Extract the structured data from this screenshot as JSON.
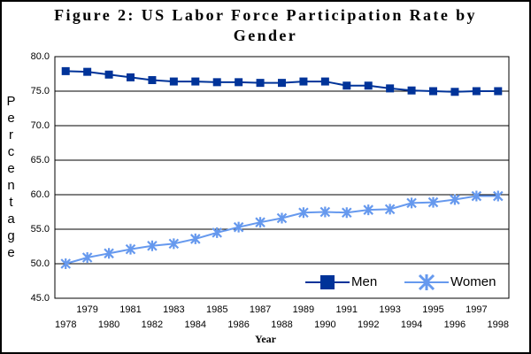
{
  "chart_data": {
    "type": "line",
    "title": "Figure 2: US Labor Force Participation Rate by Gender",
    "x_label": "Year",
    "y_label": "Percentage",
    "categories": [
      "1978",
      "1979",
      "1980",
      "1981",
      "1982",
      "1983",
      "1984",
      "1985",
      "1986",
      "1987",
      "1988",
      "1989",
      "1990",
      "1991",
      "1992",
      "1993",
      "1994",
      "1995",
      "1996",
      "1997",
      "1998"
    ],
    "series": [
      {
        "name": "Men",
        "color": "#003399",
        "marker": "square",
        "values": [
          77.9,
          77.8,
          77.4,
          77.0,
          76.6,
          76.4,
          76.4,
          76.3,
          76.3,
          76.2,
          76.2,
          76.4,
          76.4,
          75.8,
          75.8,
          75.4,
          75.1,
          75.0,
          74.9,
          75.0,
          75.0
        ]
      },
      {
        "name": "Women",
        "color": "#6699ee",
        "marker": "star",
        "values": [
          50.0,
          50.9,
          51.5,
          52.1,
          52.6,
          52.9,
          53.6,
          54.5,
          55.3,
          56.0,
          56.6,
          57.4,
          57.5,
          57.4,
          57.8,
          57.9,
          58.8,
          58.9,
          59.3,
          59.8,
          59.8
        ]
      }
    ],
    "ylim": [
      45,
      80
    ],
    "yticks": [
      {
        "value": 45,
        "label": "45.0"
      },
      {
        "value": 50,
        "label": "50.0"
      },
      {
        "value": 55,
        "label": "55.0"
      },
      {
        "value": 60,
        "label": "60.0"
      },
      {
        "value": 65,
        "label": "65.0"
      },
      {
        "value": 70,
        "label": "70.0"
      },
      {
        "value": 75,
        "label": "75.0"
      },
      {
        "value": 80,
        "label": "80.0"
      }
    ],
    "grid": true,
    "legend": "lower right"
  }
}
